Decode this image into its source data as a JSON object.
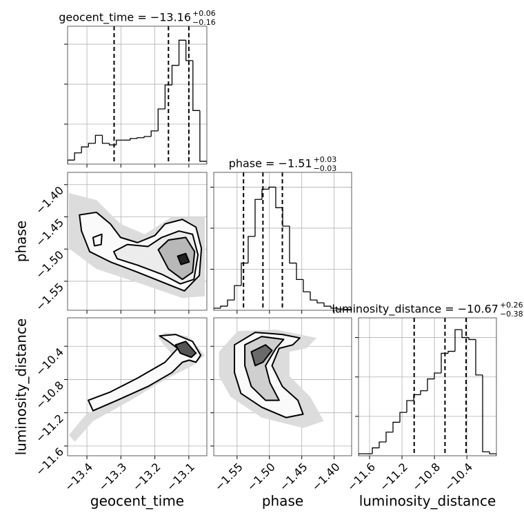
{
  "chart_data": [
    {
      "type": "histogram",
      "title": "geocent_time = −13.16",
      "title_sup": "+0.06",
      "title_sub": "−0.16",
      "color": "#000000",
      "grid": true,
      "bins": [
        -13.457,
        -13.4365,
        -13.416,
        -13.3955,
        -13.375,
        -13.3545,
        -13.334,
        -13.3135,
        -13.293,
        -13.2725,
        -13.252,
        -13.2315,
        -13.211,
        -13.1905,
        -13.17,
        -13.1495,
        -13.129,
        -13.1085,
        -13.088,
        -13.0675,
        -13.047
      ],
      "values": [
        0.1,
        0.28,
        0.43,
        0.52,
        0.72,
        0.52,
        0.48,
        0.6,
        0.6,
        0.64,
        0.66,
        0.69,
        0.83,
        1.38,
        1.98,
        2.47,
        3.1,
        2.59,
        1.34,
        0.07
      ],
      "quantiles": [
        -13.32,
        -13.16,
        -13.1
      ],
      "xlim": [
        -13.457,
        -13.047
      ],
      "ylim": [
        0,
        3.45
      ],
      "xticks": [
        -13.4,
        -13.3,
        -13.2,
        -13.1
      ],
      "yticks": [
        1,
        2,
        3
      ]
    },
    {
      "type": "contour",
      "grid": true,
      "ylabel": "phase",
      "xlim": [
        -13.457,
        -13.047
      ],
      "ylim": [
        -1.595,
        -1.381
      ],
      "xticks": [
        -13.4,
        -13.3,
        -13.2,
        -13.1
      ],
      "yticks": [
        {
          "value": -1.4,
          "label": "−1.40"
        },
        {
          "value": -1.45,
          "label": "−1.45"
        },
        {
          "value": -1.5,
          "label": "−1.50"
        },
        {
          "value": -1.55,
          "label": "−1.55"
        }
      ],
      "series": [
        {
          "fill": "#dcdcdc",
          "stroke": "none",
          "x": [
            -13.453,
            -13.372,
            -13.301,
            -13.23,
            -13.15,
            -13.053,
            -13.053,
            -13.119,
            -13.251,
            -13.372,
            -13.453
          ],
          "y": [
            -1.413,
            -1.424,
            -1.461,
            -1.477,
            -1.45,
            -1.45,
            -1.573,
            -1.576,
            -1.552,
            -1.531,
            -1.499
          ]
        },
        {
          "fill": "#fafafa",
          "stroke": "#000000",
          "x": [
            -13.422,
            -13.372,
            -13.331,
            -13.301,
            -13.251,
            -13.2,
            -13.17,
            -13.119,
            -13.079,
            -13.063,
            -13.069,
            -13.113,
            -13.251,
            -13.331,
            -13.392,
            -13.416
          ],
          "y": [
            -1.447,
            -1.443,
            -1.461,
            -1.482,
            -1.49,
            -1.479,
            -1.461,
            -1.454,
            -1.466,
            -1.499,
            -1.541,
            -1.565,
            -1.536,
            -1.52,
            -1.504,
            -1.472
          ]
        },
        {
          "fill": "#fafafa",
          "stroke": "#000000",
          "x": [
            -13.382,
            -13.356,
            -13.358,
            -13.378
          ],
          "y": [
            -1.482,
            -1.477,
            -1.493,
            -1.495
          ]
        },
        {
          "fill": "#ececec",
          "stroke": "#000000",
          "x": [
            -13.321,
            -13.281,
            -13.22,
            -13.18,
            -13.129,
            -13.089,
            -13.073,
            -13.085,
            -13.125,
            -13.18,
            -13.251,
            -13.311
          ],
          "y": [
            -1.504,
            -1.493,
            -1.496,
            -1.482,
            -1.472,
            -1.477,
            -1.509,
            -1.547,
            -1.554,
            -1.539,
            -1.525,
            -1.515
          ]
        },
        {
          "fill": "#b8b8b8",
          "stroke": "#000000",
          "x": [
            -13.19,
            -13.16,
            -13.109,
            -13.083,
            -13.089,
            -13.119,
            -13.16
          ],
          "y": [
            -1.501,
            -1.486,
            -1.482,
            -1.504,
            -1.536,
            -1.547,
            -1.531
          ]
        },
        {
          "fill": "#222222",
          "stroke": "#000000",
          "x": [
            -13.133,
            -13.109,
            -13.099,
            -13.123
          ],
          "y": [
            -1.511,
            -1.507,
            -1.52,
            -1.524
          ]
        }
      ]
    },
    {
      "type": "histogram",
      "title": "phase = −1.51",
      "title_sup": "+0.03",
      "title_sub": "−0.03",
      "color": "#000000",
      "grid": true,
      "bins": [
        -1.586,
        -1.5754,
        -1.5647,
        -1.5541,
        -1.5434,
        -1.5328,
        -1.5221,
        -1.5115,
        -1.5008,
        -1.4902,
        -1.4795,
        -1.4689,
        -1.4582,
        -1.4476,
        -1.4369,
        -1.4263,
        -1.4156,
        -1.405,
        -1.3943,
        -1.3837,
        -1.373
      ],
      "values": [
        0.05,
        0.1,
        0.25,
        0.6,
        1.15,
        1.8,
        2.7,
        2.95,
        3.0,
        2.5,
        2.05,
        1.15,
        0.75,
        0.45,
        0.25,
        0.18,
        0.1,
        0.05,
        0.03,
        0.02
      ],
      "quantiles": [
        -1.54,
        -1.51,
        -1.48
      ],
      "xlim": [
        -1.586,
        -1.373
      ],
      "ylim": [
        0,
        3.36
      ],
      "xticks": [
        -1.55,
        -1.5,
        -1.45,
        -1.4
      ],
      "yticks": [
        1,
        2,
        3
      ]
    },
    {
      "type": "contour",
      "grid": true,
      "xlabel": "geocent_time",
      "ylabel": "luminosity_distance",
      "xlim": [
        -13.457,
        -13.047
      ],
      "ylim": [
        -11.717,
        -10.058
      ],
      "xticks": [
        {
          "value": -13.4,
          "label": "−13.4"
        },
        {
          "value": -13.3,
          "label": "−13.3"
        },
        {
          "value": -13.2,
          "label": "−13.2"
        },
        {
          "value": -13.1,
          "label": "−13.1"
        }
      ],
      "yticks": [
        {
          "value": -10.4,
          "label": "−10.4"
        },
        {
          "value": -10.8,
          "label": "−10.8"
        },
        {
          "value": -11.2,
          "label": "−11.2"
        },
        {
          "value": -11.6,
          "label": "−11.6"
        }
      ],
      "series": [
        {
          "fill": "#dcdcdc",
          "stroke": "none",
          "x": [
            -13.453,
            -13.402,
            -13.291,
            -13.19,
            -13.139,
            -13.19,
            -13.17,
            -13.099,
            -13.053,
            -13.089,
            -13.17,
            -13.271,
            -13.382,
            -13.436
          ],
          "y": [
            -11.467,
            -11.217,
            -11.008,
            -10.783,
            -10.55,
            -10.3,
            -10.233,
            -10.283,
            -10.508,
            -10.633,
            -10.8,
            -11.05,
            -11.3,
            -11.55
          ]
        },
        {
          "fill": "#fafafa",
          "stroke": "#000000",
          "x": [
            -13.396,
            -13.331,
            -13.251,
            -13.17,
            -13.133,
            -13.16,
            -13.186,
            -13.139,
            -13.089,
            -13.065,
            -13.079,
            -13.099,
            -13.119,
            -13.15,
            -13.22,
            -13.311,
            -13.382
          ],
          "y": [
            -11.05,
            -10.95,
            -10.783,
            -10.592,
            -10.425,
            -10.342,
            -10.275,
            -10.258,
            -10.342,
            -10.508,
            -10.592,
            -10.567,
            -10.592,
            -10.717,
            -10.883,
            -11.05,
            -11.175
          ]
        },
        {
          "fill": "#555555",
          "stroke": "#000000",
          "x": [
            -13.139,
            -13.109,
            -13.079,
            -13.093,
            -13.125
          ],
          "y": [
            -10.383,
            -10.342,
            -10.483,
            -10.533,
            -10.483
          ]
        }
      ]
    },
    {
      "type": "contour",
      "grid": true,
      "xlabel": "phase",
      "xlim": [
        -1.586,
        -1.373
      ],
      "ylim": [
        -11.717,
        -10.058
      ],
      "xticks": [
        {
          "value": -1.55,
          "label": "−1.55"
        },
        {
          "value": -1.5,
          "label": "−1.50"
        },
        {
          "value": -1.45,
          "label": "−1.45"
        },
        {
          "value": -1.4,
          "label": "−1.40"
        }
      ],
      "yticks": [
        -10.4,
        -10.8,
        -11.2,
        -11.6
      ],
      "series": [
        {
          "fill": "#dcdcdc",
          "stroke": "none",
          "x": [
            -1.578,
            -1.549,
            -1.49,
            -1.427,
            -1.443,
            -1.469,
            -1.469,
            -1.437,
            -1.416,
            -1.448,
            -1.512,
            -1.56,
            -1.578
          ],
          "y": [
            -10.467,
            -10.217,
            -10.2,
            -10.3,
            -10.425,
            -10.467,
            -10.758,
            -11.008,
            -11.3,
            -11.383,
            -11.258,
            -11.008,
            -10.758
          ]
        },
        {
          "fill": "#fafafa",
          "stroke": "#000000",
          "x": [
            -1.554,
            -1.522,
            -1.48,
            -1.453,
            -1.464,
            -1.485,
            -1.496,
            -1.48,
            -1.456,
            -1.448,
            -1.474,
            -1.512,
            -1.544,
            -1.554
          ],
          "y": [
            -10.383,
            -10.233,
            -10.258,
            -10.3,
            -10.383,
            -10.425,
            -10.633,
            -10.883,
            -11.05,
            -11.217,
            -11.258,
            -11.133,
            -10.967,
            -10.717
          ]
        },
        {
          "fill": "#cfcfcf",
          "stroke": "#000000",
          "x": [
            -1.538,
            -1.512,
            -1.478,
            -1.49,
            -1.506,
            -1.499,
            -1.485,
            -1.506,
            -1.528,
            -1.538
          ],
          "y": [
            -10.383,
            -10.283,
            -10.317,
            -10.425,
            -10.633,
            -10.842,
            -11.05,
            -11.05,
            -10.883,
            -10.633
          ]
        },
        {
          "fill": "#6a6a6a",
          "stroke": "#000000",
          "x": [
            -1.528,
            -1.506,
            -1.496,
            -1.51,
            -1.522
          ],
          "y": [
            -10.467,
            -10.383,
            -10.45,
            -10.592,
            -10.633
          ]
        }
      ]
    },
    {
      "type": "histogram",
      "title": "luminosity_distance = −10.67",
      "title_sup": "+0.26",
      "title_sub": "−0.38",
      "color": "#000000",
      "grid": true,
      "xlabel": "luminosity_distance",
      "bins": [
        -11.736,
        -11.651,
        -11.566,
        -11.481,
        -11.396,
        -11.311,
        -11.226,
        -11.141,
        -11.056,
        -10.971,
        -10.886,
        -10.801,
        -10.716,
        -10.631,
        -10.546,
        -10.461,
        -10.376,
        -10.291,
        -10.206,
        -10.121,
        -10.036
      ],
      "values": [
        0.05,
        0.05,
        0.2,
        0.35,
        0.6,
        0.85,
        1.1,
        1.4,
        1.55,
        1.65,
        1.95,
        2.1,
        2.6,
        2.65,
        3.2,
        3.0,
        2.95,
        2.05,
        0.1,
        0.05
      ],
      "quantiles": [
        -11.05,
        -10.67,
        -10.41
      ],
      "xlim": [
        -11.736,
        -10.036
      ],
      "ylim": [
        0,
        3.5
      ],
      "xticks": [
        {
          "value": -11.6,
          "label": "−11.6"
        },
        {
          "value": -11.2,
          "label": "−11.2"
        },
        {
          "value": -10.8,
          "label": "−10.8"
        },
        {
          "value": -10.4,
          "label": "−10.4"
        }
      ],
      "yticks": [
        1,
        2,
        3
      ]
    }
  ]
}
